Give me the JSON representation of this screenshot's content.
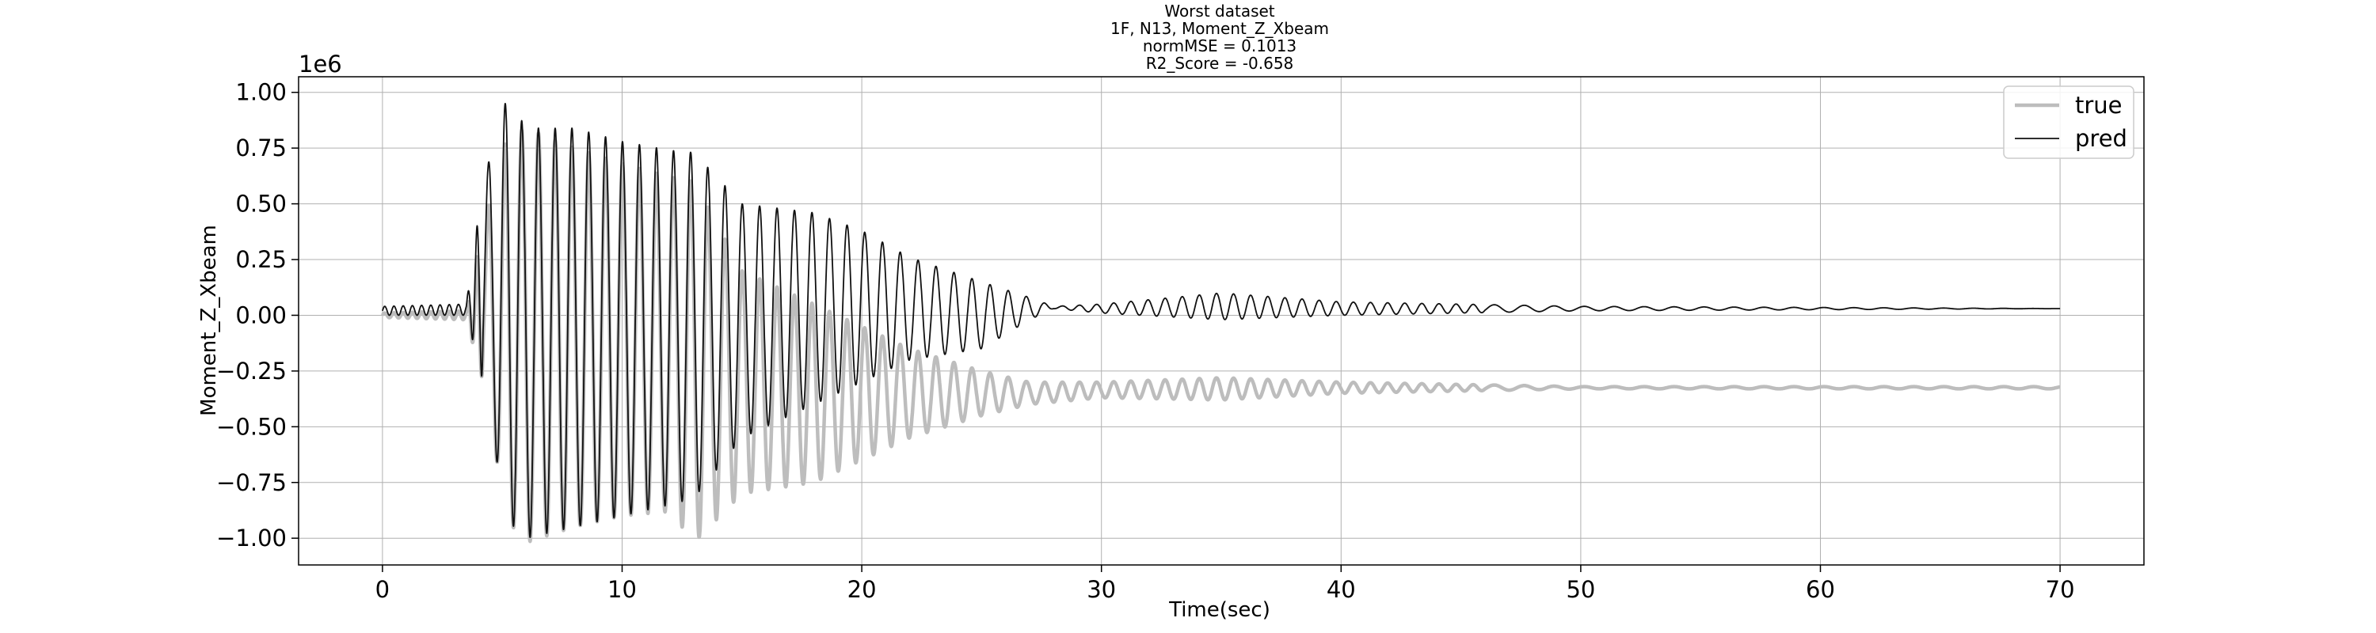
{
  "chart_data": {
    "type": "line",
    "title_lines": [
      "Worst dataset",
      "1F, N13, Moment_Z_Xbeam",
      "normMSE = 0.1013",
      "R2_Score = -0.658"
    ],
    "xlabel": "Time(sec)",
    "ylabel": "Moment_Z_Xbeam",
    "y_offset_text": "1e6",
    "xlim": [
      -3.5,
      73.5
    ],
    "ylim": [
      -1.12,
      1.07
    ],
    "x_ticks": [
      0,
      10,
      20,
      30,
      40,
      50,
      60,
      70
    ],
    "x_tick_labels": [
      "0",
      "10",
      "20",
      "30",
      "40",
      "50",
      "60",
      "70"
    ],
    "y_ticks": [
      1.0,
      0.75,
      0.5,
      0.25,
      0.0,
      -0.25,
      -0.5,
      -0.75,
      -1.0
    ],
    "y_tick_labels": [
      "1.00",
      "0.75",
      "0.50",
      "0.25",
      "0.00",
      "−0.25",
      "−0.50",
      "−0.75",
      "−1.00"
    ],
    "grid": true,
    "legend_position": "top-right",
    "series": [
      {
        "name": "true",
        "color": "#bdbdbd",
        "approx_envelope": {
          "x": [
            0,
            3.5,
            4.2,
            5.2,
            6,
            8,
            10,
            12,
            13,
            15,
            18,
            20,
            22,
            25,
            27,
            30,
            35,
            40,
            45,
            50,
            70
          ],
          "upper": [
            0.01,
            0.02,
            0.4,
            0.8,
            0.84,
            0.75,
            0.68,
            0.62,
            0.6,
            0.2,
            0.05,
            -0.05,
            -0.15,
            -0.25,
            -0.3,
            -0.3,
            -0.28,
            -0.3,
            -0.31,
            -0.32,
            -0.32
          ],
          "lower": [
            -0.01,
            -0.02,
            -0.3,
            -0.92,
            -1.02,
            -0.95,
            -0.9,
            -0.88,
            -1.02,
            -0.8,
            -0.75,
            -0.65,
            -0.55,
            -0.45,
            -0.4,
            -0.37,
            -0.38,
            -0.35,
            -0.34,
            -0.33,
            -0.33
          ]
        }
      },
      {
        "name": "pred",
        "color": "#111111",
        "approx_envelope": {
          "x": [
            0,
            3.5,
            4.2,
            5.2,
            6,
            8,
            10,
            12,
            13,
            15,
            18,
            20,
            22,
            25,
            27,
            28,
            30,
            35,
            40,
            45,
            50,
            70
          ],
          "upper": [
            0.04,
            0.05,
            0.6,
            0.98,
            0.84,
            0.84,
            0.78,
            0.74,
            0.73,
            0.5,
            0.46,
            0.38,
            0.26,
            0.15,
            0.08,
            0.04,
            0.05,
            0.1,
            0.06,
            0.05,
            0.04,
            0.03
          ],
          "lower": [
            0.0,
            0.0,
            -0.3,
            -0.92,
            -1.0,
            -0.95,
            -0.9,
            -0.85,
            -0.82,
            -0.55,
            -0.4,
            -0.3,
            -0.2,
            -0.15,
            -0.02,
            0.03,
            0.01,
            -0.02,
            0.0,
            0.01,
            0.02,
            0.03
          ]
        }
      }
    ]
  }
}
